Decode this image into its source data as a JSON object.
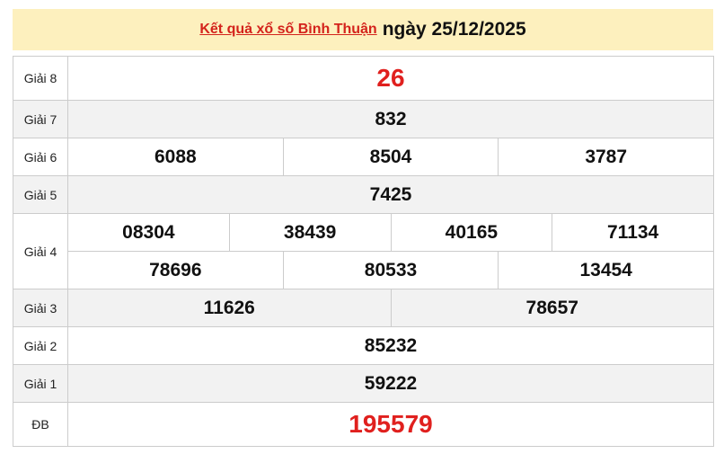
{
  "header": {
    "link": "Kết quả xổ số Bình Thuận",
    "date": "ngày 25/12/2025"
  },
  "prizes": [
    {
      "label": "Giải 8",
      "rows": [
        [
          "26"
        ]
      ]
    },
    {
      "label": "Giải 7",
      "rows": [
        [
          "832"
        ]
      ]
    },
    {
      "label": "Giải 6",
      "rows": [
        [
          "6088",
          "8504",
          "3787"
        ]
      ]
    },
    {
      "label": "Giải 5",
      "rows": [
        [
          "7425"
        ]
      ]
    },
    {
      "label": "Giải 4",
      "rows": [
        [
          "08304",
          "38439",
          "40165",
          "71134"
        ],
        [
          "78696",
          "80533",
          "13454"
        ]
      ]
    },
    {
      "label": "Giải 3",
      "rows": [
        [
          "11626",
          "78657"
        ]
      ]
    },
    {
      "label": "Giải 2",
      "rows": [
        [
          "85232"
        ]
      ]
    },
    {
      "label": "Giải 1",
      "rows": [
        [
          "59222"
        ]
      ]
    },
    {
      "label": "ĐB",
      "rows": [
        [
          "195579"
        ]
      ]
    }
  ],
  "colors": {
    "header_bg": "#fdf0be",
    "accent_red": "#e0201e",
    "row_alt": "#f2f2f2"
  }
}
